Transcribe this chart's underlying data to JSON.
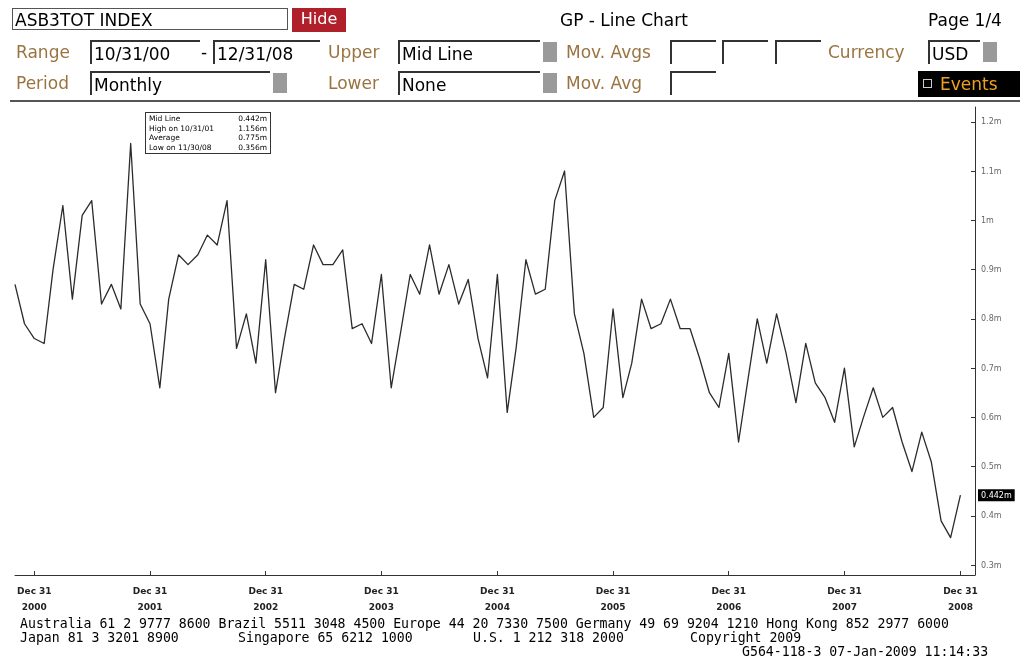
{
  "chart_data": {
    "type": "line",
    "title": "GP - Line Chart",
    "subtitle": "ASB3TOT INDEX",
    "x": [
      "2000-10-31",
      "2000-11-30",
      "2000-12-31",
      "2001-01-31",
      "2001-02-28",
      "2001-03-31",
      "2001-04-30",
      "2001-05-31",
      "2001-06-30",
      "2001-07-31",
      "2001-08-31",
      "2001-09-30",
      "2001-10-31",
      "2001-11-30",
      "2001-12-31",
      "2002-01-31",
      "2002-02-28",
      "2002-03-31",
      "2002-04-30",
      "2002-05-31",
      "2002-06-30",
      "2002-07-31",
      "2002-08-31",
      "2002-09-30",
      "2002-10-31",
      "2002-11-30",
      "2002-12-31",
      "2003-01-31",
      "2003-02-28",
      "2003-03-31",
      "2003-04-30",
      "2003-05-31",
      "2003-06-30",
      "2003-07-31",
      "2003-08-31",
      "2003-09-30",
      "2003-10-31",
      "2003-11-30",
      "2003-12-31",
      "2004-01-31",
      "2004-02-29",
      "2004-03-31",
      "2004-04-30",
      "2004-05-31",
      "2004-06-30",
      "2004-07-31",
      "2004-08-31",
      "2004-09-30",
      "2004-10-31",
      "2004-11-30",
      "2004-12-31",
      "2005-01-31",
      "2005-02-28",
      "2005-03-31",
      "2005-04-30",
      "2005-05-31",
      "2005-06-30",
      "2005-07-31",
      "2005-08-31",
      "2005-09-30",
      "2005-10-31",
      "2005-11-30",
      "2005-12-31",
      "2006-01-31",
      "2006-02-28",
      "2006-03-31",
      "2006-04-30",
      "2006-05-31",
      "2006-06-30",
      "2006-07-31",
      "2006-08-31",
      "2006-09-30",
      "2006-10-31",
      "2006-11-30",
      "2006-12-31",
      "2007-01-31",
      "2007-02-28",
      "2007-03-31",
      "2007-04-30",
      "2007-05-31",
      "2007-06-30",
      "2007-07-31",
      "2007-08-31",
      "2007-09-30",
      "2007-10-31",
      "2007-11-30",
      "2007-12-31",
      "2008-01-31",
      "2008-02-29",
      "2008-03-31",
      "2008-04-30",
      "2008-05-31",
      "2008-06-30",
      "2008-07-31",
      "2008-08-31",
      "2008-09-30",
      "2008-10-31",
      "2008-11-30",
      "2008-12-31"
    ],
    "series": [
      {
        "color": "#2b2b2b",
        "values": [
          0.87,
          0.79,
          0.76,
          0.75,
          0.9,
          1.03,
          0.84,
          1.01,
          1.04,
          0.83,
          0.87,
          0.82,
          1.156,
          0.83,
          0.79,
          0.66,
          0.84,
          0.93,
          0.91,
          0.93,
          0.97,
          0.95,
          1.04,
          0.74,
          0.81,
          0.71,
          0.92,
          0.65,
          0.76,
          0.87,
          0.86,
          0.95,
          0.91,
          0.91,
          0.94,
          0.78,
          0.79,
          0.75,
          0.89,
          0.66,
          0.77,
          0.89,
          0.85,
          0.95,
          0.85,
          0.91,
          0.83,
          0.88,
          0.76,
          0.68,
          0.89,
          0.61,
          0.74,
          0.92,
          0.85,
          0.86,
          1.04,
          1.1,
          0.81,
          0.73,
          0.6,
          0.62,
          0.82,
          0.64,
          0.71,
          0.84,
          0.78,
          0.79,
          0.84,
          0.78,
          0.78,
          0.72,
          0.65,
          0.62,
          0.73,
          0.55,
          0.67,
          0.8,
          0.71,
          0.81,
          0.73,
          0.63,
          0.75,
          0.67,
          0.64,
          0.59,
          0.7,
          0.54,
          0.6,
          0.66,
          0.6,
          0.62,
          0.55,
          0.49,
          0.57,
          0.51,
          0.39,
          0.356,
          0.442
        ]
      }
    ],
    "xlim": [
      "2000-10-31",
      "2009-02-15"
    ],
    "xticks": [
      {
        "value": "2000-12-31",
        "label": "Dec 31\n2000"
      },
      {
        "value": "2001-12-31",
        "label": "Dec 31\n2001"
      },
      {
        "value": "2002-12-31",
        "label": "Dec 31\n2002"
      },
      {
        "value": "2003-12-31",
        "label": "Dec 31\n2003"
      },
      {
        "value": "2004-12-31",
        "label": "Dec 31\n2004"
      },
      {
        "value": "2005-12-31",
        "label": "Dec 31\n2005"
      },
      {
        "value": "2006-12-31",
        "label": "Dec 31\n2006"
      },
      {
        "value": "2007-12-31",
        "label": "Dec 31\n2007"
      },
      {
        "value": "2008-12-31",
        "label": "Dec 31\n2008"
      }
    ],
    "ylim": [
      0.28,
      1.23
    ],
    "yticks": [
      {
        "value": 0.3,
        "label": "0.3m"
      },
      {
        "value": 0.4,
        "label": "0.4m"
      },
      {
        "value": 0.5,
        "label": "0.5m"
      },
      {
        "value": 0.6,
        "label": "0.6m"
      },
      {
        "value": 0.7,
        "label": "0.7m"
      },
      {
        "value": 0.8,
        "label": "0.8m"
      },
      {
        "value": 0.9,
        "label": "0.9m"
      },
      {
        "value": 1,
        "label": "1m"
      },
      {
        "value": 1.1,
        "label": "1.1m"
      },
      {
        "value": 1.2,
        "label": "1.2m"
      }
    ],
    "grid": false,
    "marker": "none",
    "line_style": "solid",
    "annotations": [
      "Hide",
      "Page 1/4",
      "Range",
      "10/31/00",
      "-",
      "12/31/08",
      "Upper",
      "Mid Line",
      "Mov. Avgs",
      "Currency",
      "USD",
      "Period",
      "Monthly",
      "Lower",
      "None",
      "Mov. Avg",
      "Events",
      "Mid Line",
      "0.442m",
      "High on 10/31/01",
      "1.156m",
      "Average",
      "0.775m",
      "Low on 11/30/08",
      "0.356m",
      "Australia 61 2 9777 8600 Brazil 5511 3048 4500 Europe 44 20 7330 7500 Germany 49 69 9204 1210 Hong Kong 852 2977 6000",
      "Japan 81 3 3201 8900",
      "Singapore 65 6212 1000",
      "U.S. 1 212 318 2000",
      "Copyright 2009",
      "G564-118-3 07-Jan-2009 11:14:33",
      {
        "text": "0.442m",
        "x": "2008-12-31",
        "y": 0.442
      }
    ]
  }
}
